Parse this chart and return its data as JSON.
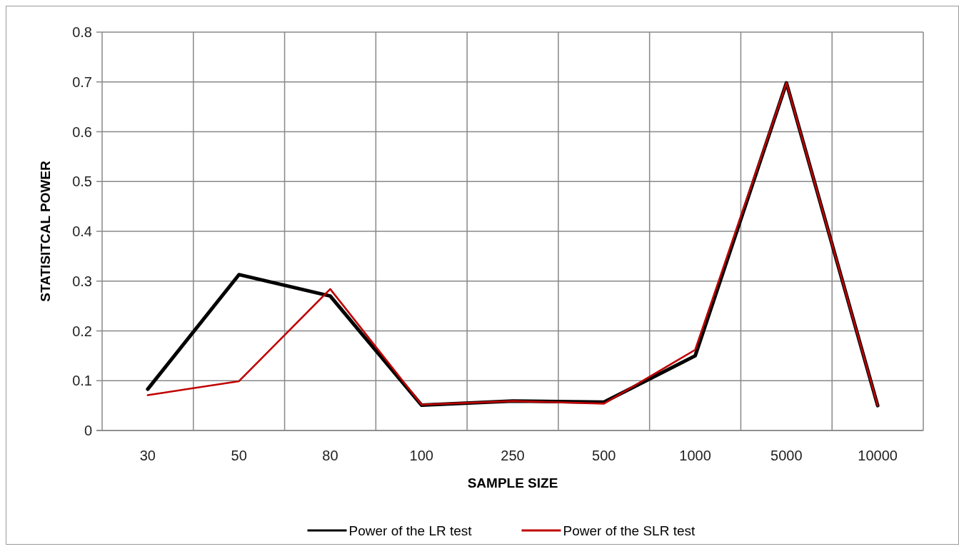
{
  "chart_data": {
    "type": "line",
    "xlabel": "SAMPLE SIZE",
    "ylabel": "STATISITCAL POWER",
    "categories": [
      "30",
      "50",
      "80",
      "100",
      "250",
      "500",
      "1000",
      "5000",
      "10000"
    ],
    "series": [
      {
        "name": "Power of the LR test",
        "color": "#000000",
        "values": [
          0.083,
          0.313,
          0.27,
          0.051,
          0.059,
          0.057,
          0.15,
          0.698,
          0.05
        ]
      },
      {
        "name": "Power of the SLR test",
        "color": "#c00000",
        "values": [
          0.071,
          0.099,
          0.284,
          0.052,
          0.059,
          0.054,
          0.162,
          0.698,
          0.05
        ]
      }
    ],
    "ylim": [
      0,
      0.8
    ],
    "yticks": [
      0,
      0.1,
      0.2,
      0.3,
      0.4,
      0.5,
      0.6,
      0.7,
      0.8
    ],
    "grid": true,
    "legend": "bottom",
    "marker": "none",
    "line_style": "solid"
  }
}
